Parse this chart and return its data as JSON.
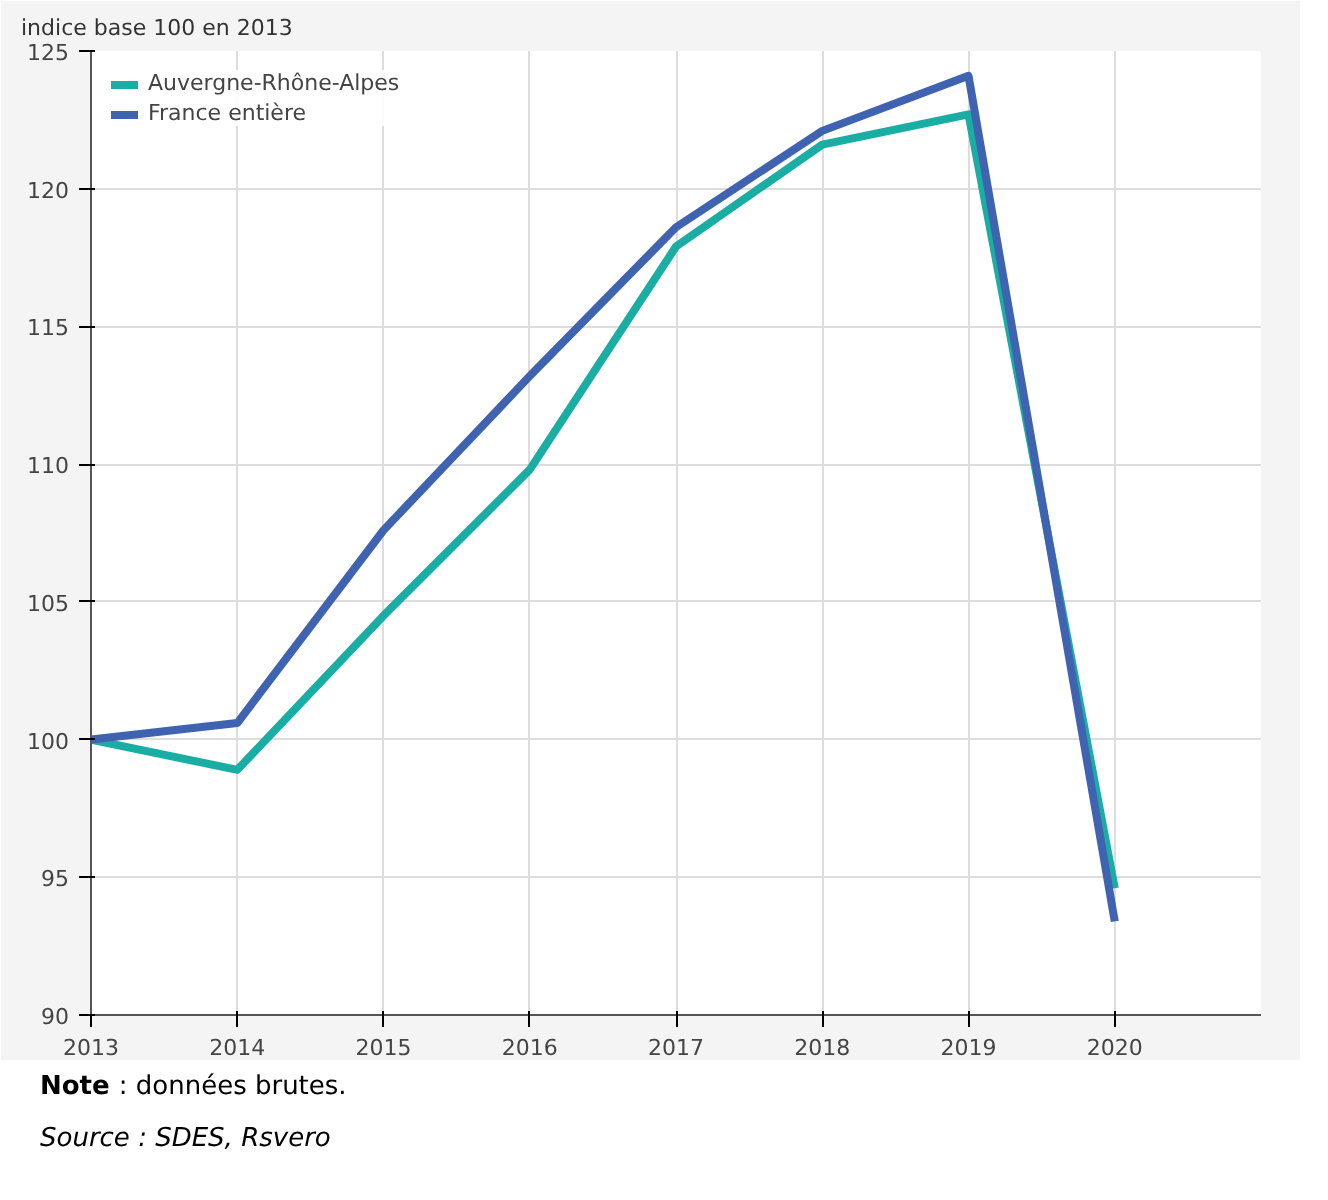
{
  "chart_data": {
    "type": "line",
    "ylabel": "indice base 100 en 2013",
    "x": [
      2013,
      2014,
      2015,
      2016,
      2017,
      2018,
      2019,
      2020
    ],
    "series": [
      {
        "name": "Auvergne-Rhône-Alpes",
        "color": "#1aada3",
        "values": [
          100,
          98.9,
          104.5,
          109.8,
          117.9,
          121.6,
          122.7,
          94.6
        ]
      },
      {
        "name": "France entière",
        "color": "#3f63b0",
        "values": [
          100,
          100.6,
          107.6,
          113.2,
          118.6,
          122.1,
          124.1,
          93.4
        ]
      }
    ],
    "xlim": [
      2013,
      2021
    ],
    "xticks": [
      2013,
      2014,
      2015,
      2016,
      2017,
      2018,
      2019,
      2020
    ],
    "ylim": [
      90,
      125
    ],
    "yticks": [
      90,
      95,
      100,
      105,
      110,
      115,
      120,
      125
    ],
    "grid": true,
    "legend": "top left",
    "marker": "none",
    "line_style": "solid",
    "annotations": [
      "Note : données brutes.",
      "Source : SDES, Rsvero"
    ]
  }
}
